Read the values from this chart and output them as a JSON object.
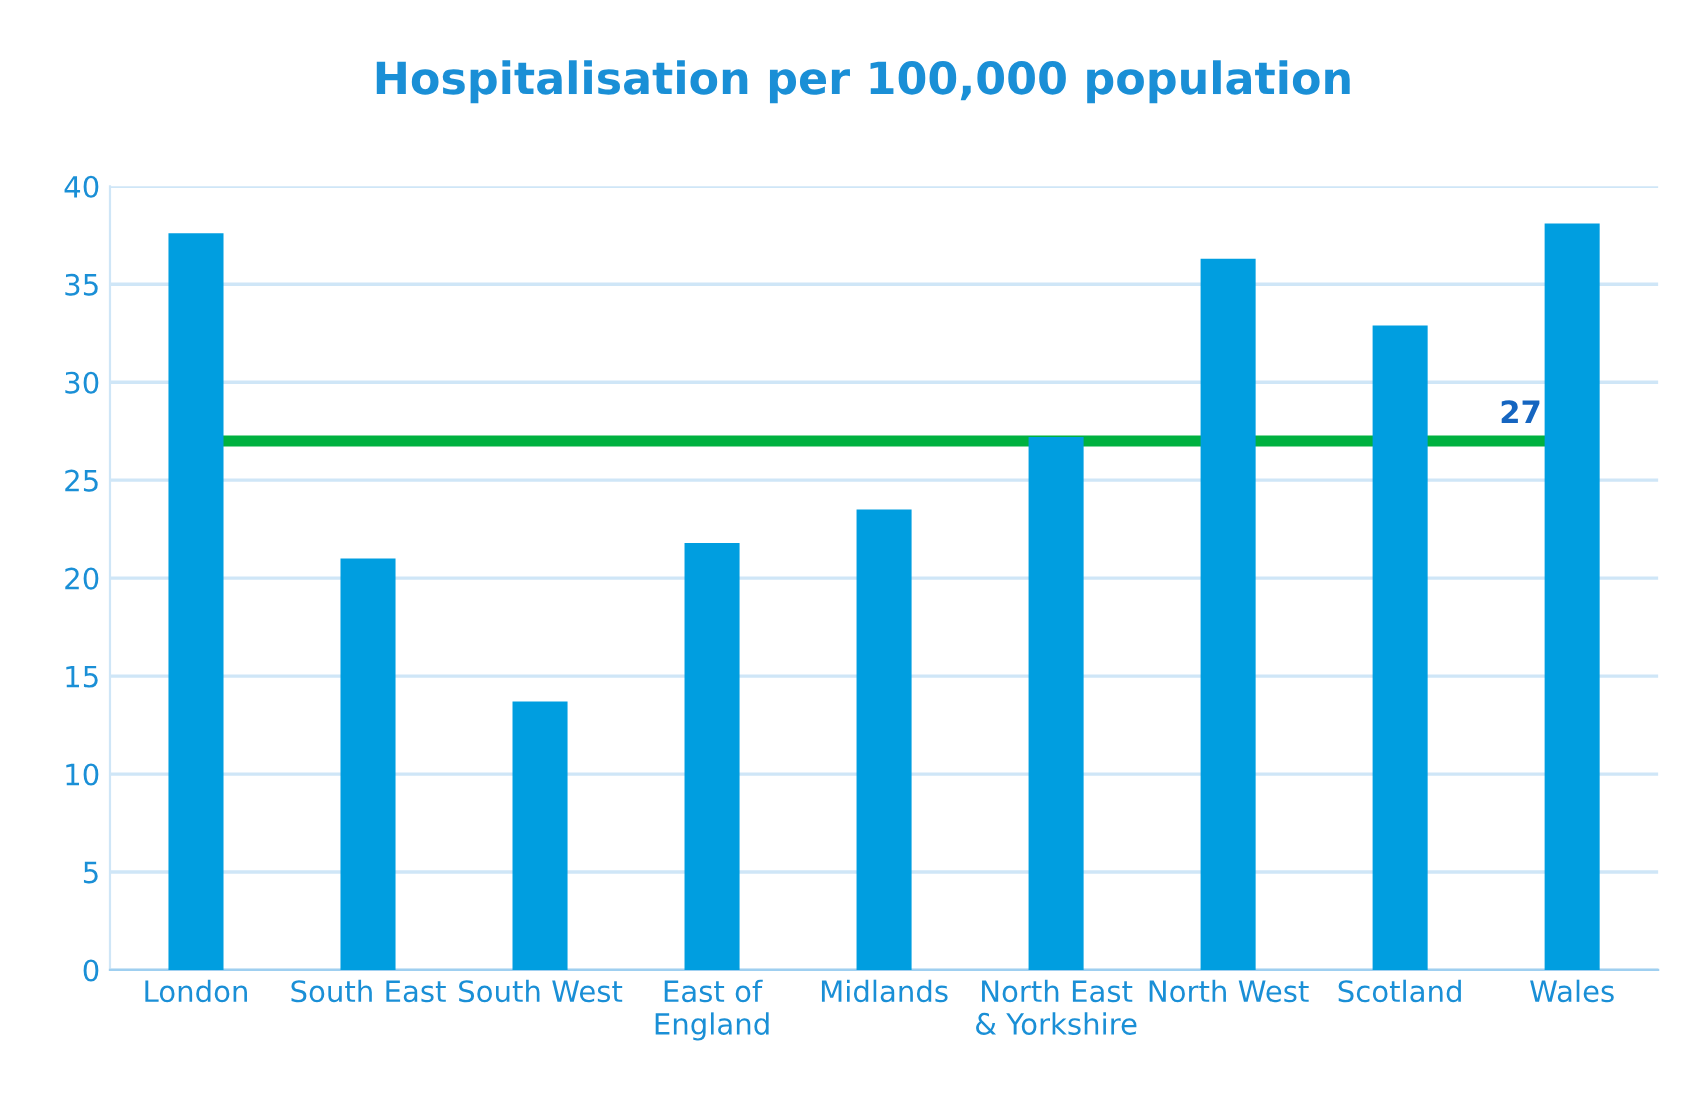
{
  "chart_data": {
    "type": "bar",
    "title": "Hospitalisation per 100,000 population",
    "categories": [
      "London",
      "South East",
      "South West",
      "East of\nEngland",
      "Midlands",
      "North East\n& Yorkshire",
      "North West",
      "Scotland",
      "Wales"
    ],
    "values": [
      37.6,
      21.0,
      13.7,
      21.8,
      23.5,
      27.2,
      36.3,
      32.9,
      38.1
    ],
    "color": "#009ee0",
    "ylim": [
      0,
      40
    ],
    "yticks": [
      0,
      5,
      10,
      15,
      20,
      25,
      30,
      35,
      40
    ],
    "grid": "y",
    "ref_lines": [
      {
        "axis": "y",
        "value": 27,
        "label": "27",
        "color": "#00b140"
      }
    ]
  }
}
